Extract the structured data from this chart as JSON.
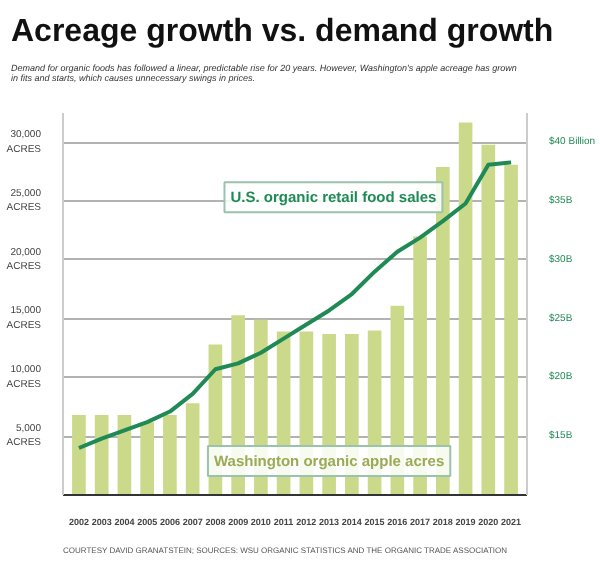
{
  "chart_data": {
    "type": "bar",
    "title": "Acreage growth vs. demand growth",
    "subtitle": "Demand for organic foods has followed a linear, predictable rise for 20 years. However, Washington's apple acreage has grown in fits and starts, which causes unnecessary swings in prices.",
    "categories": [
      "2002",
      "2003",
      "2004",
      "2005",
      "2006",
      "2007",
      "2008",
      "2009",
      "2010",
      "2011",
      "2012",
      "2013",
      "2014",
      "2015",
      "2016",
      "2017",
      "2018",
      "2019",
      "2020",
      "2021"
    ],
    "series": [
      {
        "name": "Washington organic apple acres",
        "color": "#cbd98a",
        "values": [
          6800,
          6800,
          6800,
          6200,
          6800,
          7800,
          12800,
          15300,
          14900,
          13900,
          13900,
          13700,
          13700,
          14000,
          16100,
          22000,
          27900,
          31700,
          29800,
          28100
        ]
      },
      {
        "name": "U.S. organic retail food sales",
        "type": "line",
        "axis": "y2",
        "color": "#1f8a55",
        "values": [
          14.0,
          14.8,
          15.5,
          16.2,
          17.1,
          18.6,
          20.7,
          21.2,
          22.1,
          23.3,
          24.5,
          25.7,
          27.1,
          29.0,
          30.7,
          31.9,
          33.3,
          34.8,
          38.1,
          38.3
        ]
      }
    ],
    "ylim": [
      0,
      32500
    ],
    "yticks": [
      {
        "value": 5000,
        "label": "5,000\nACRES"
      },
      {
        "value": 10000,
        "label": "10,000\nACRES"
      },
      {
        "value": 15000,
        "label": "15,000\nACRES"
      },
      {
        "value": 20000,
        "label": "20,000\nACRES"
      },
      {
        "value": 25000,
        "label": "25,000\nACRES"
      },
      {
        "value": 30000,
        "label": "30,000\nACRES"
      }
    ],
    "y2lim": [
      10,
      42.5
    ],
    "y2ticks": [
      {
        "value": 15,
        "label": "$15B"
      },
      {
        "value": 20,
        "label": "$20B"
      },
      {
        "value": 25,
        "label": "$25B"
      },
      {
        "value": 30,
        "label": "$30B"
      },
      {
        "value": 35,
        "label": "$35B"
      },
      {
        "value": 40,
        "label": "$40 Billion"
      }
    ],
    "grid": "y",
    "legend": false,
    "line_style": "solid",
    "marker": "none",
    "annotations": [
      "COURTESY DAVID GRANATSTEIN; SOURCES: WSU ORGANIC STATISTICS AND THE ORGANIC TRADE ASSOCIATION"
    ]
  }
}
